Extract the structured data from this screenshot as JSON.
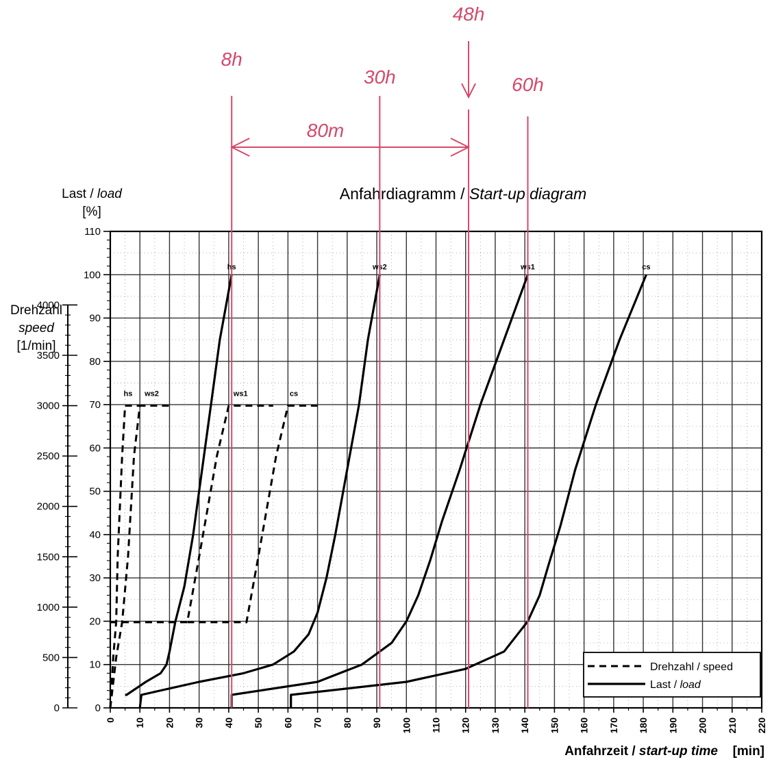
{
  "chart_data": {
    "type": "line",
    "title": "Anfahrdiagramm / Start-up diagram",
    "title_parts": {
      "de": "Anfahrdiagramm /",
      "en": "Start-up diagram"
    },
    "xlabel": "Anfahrzeit / start-up time",
    "xlabel_parts": {
      "de": "Anfahrzeit /",
      "en": "start-up time"
    },
    "xunit": "[min]",
    "ylabel_load": {
      "de": "Last /",
      "en": "load",
      "unit": "[%]"
    },
    "ylabel_speed": {
      "de": "Drehzahl",
      "en": "speed",
      "unit": "[1/min]"
    },
    "xlim": [
      0,
      220
    ],
    "ylim_load": [
      0,
      110
    ],
    "ylim_speed": [
      0,
      4000
    ],
    "x_ticks": [
      "0",
      "10",
      "20",
      "30",
      "40",
      "50",
      "60",
      "70",
      "80",
      "90",
      "100",
      "110",
      "120",
      "130",
      "140",
      "150",
      "160",
      "170",
      "180",
      "190",
      "200",
      "210",
      "220"
    ],
    "load_ticks": [
      "0",
      "10",
      "20",
      "30",
      "40",
      "50",
      "60",
      "70",
      "80",
      "90",
      "100",
      "110"
    ],
    "speed_ticks": [
      "0",
      "500",
      "1000",
      "1500",
      "2000",
      "2500",
      "3000",
      "3500",
      "4000"
    ],
    "grid": true,
    "legend_position": "bottom-right",
    "legend": [
      {
        "label": "Drehzahl / speed",
        "style": "dashed"
      },
      {
        "label_de": "Last /",
        "label_en": "load",
        "style": "solid"
      }
    ],
    "load_series": [
      {
        "name": "hs",
        "points": [
          [
            5,
            3
          ],
          [
            5.5,
            3
          ],
          [
            12,
            6
          ],
          [
            17,
            8
          ],
          [
            19,
            10
          ],
          [
            20,
            13
          ],
          [
            22,
            20
          ],
          [
            25,
            28
          ],
          [
            28,
            40
          ],
          [
            31,
            55
          ],
          [
            34,
            70
          ],
          [
            37,
            85
          ],
          [
            41,
            100
          ]
        ]
      },
      {
        "name": "ws2",
        "points": [
          [
            10,
            0
          ],
          [
            10.5,
            3
          ],
          [
            30,
            6
          ],
          [
            45,
            8
          ],
          [
            55,
            10
          ],
          [
            62,
            13
          ],
          [
            67,
            17
          ],
          [
            70,
            22
          ],
          [
            73,
            30
          ],
          [
            76,
            40
          ],
          [
            80,
            55
          ],
          [
            84,
            70
          ],
          [
            87,
            85
          ],
          [
            91,
            100
          ]
        ]
      },
      {
        "name": "ws1",
        "points": [
          [
            41,
            0
          ],
          [
            41,
            3
          ],
          [
            70,
            6
          ],
          [
            85,
            10
          ],
          [
            95,
            15
          ],
          [
            100,
            20
          ],
          [
            104,
            26
          ],
          [
            108,
            34
          ],
          [
            112,
            43
          ],
          [
            118,
            55
          ],
          [
            125,
            70
          ],
          [
            133,
            85
          ],
          [
            141,
            100
          ]
        ]
      },
      {
        "name": "cs",
        "points": [
          [
            61,
            0
          ],
          [
            61,
            3
          ],
          [
            100,
            6
          ],
          [
            120,
            9
          ],
          [
            133,
            13
          ],
          [
            141,
            20
          ],
          [
            145,
            26
          ],
          [
            148,
            33
          ],
          [
            152,
            42
          ],
          [
            157,
            55
          ],
          [
            164,
            70
          ],
          [
            172,
            85
          ],
          [
            181,
            100
          ]
        ]
      }
    ],
    "speed_series": [
      {
        "name": "hs",
        "points": [
          [
            0,
            0
          ],
          [
            1,
            500
          ],
          [
            2,
            850
          ],
          [
            2.5,
            1500
          ],
          [
            4,
            2500
          ],
          [
            5,
            3000
          ],
          [
            10,
            3000
          ]
        ]
      },
      {
        "name": "ws2",
        "points": [
          [
            0,
            0
          ],
          [
            2,
            500
          ],
          [
            4,
            850
          ],
          [
            6,
            1500
          ],
          [
            8,
            2500
          ],
          [
            10,
            3000
          ],
          [
            21,
            3000
          ]
        ]
      },
      {
        "name": "ws1",
        "points": [
          [
            0,
            850
          ],
          [
            26,
            850
          ],
          [
            30,
            1500
          ],
          [
            36,
            2500
          ],
          [
            40,
            3000
          ],
          [
            55,
            3000
          ]
        ]
      },
      {
        "name": "cs",
        "points": [
          [
            26,
            850
          ],
          [
            46,
            850
          ],
          [
            50,
            1500
          ],
          [
            56,
            2500
          ],
          [
            60,
            3000
          ],
          [
            71,
            3000
          ]
        ]
      }
    ],
    "speed_labels": [
      "hs",
      "ws2",
      "ws1",
      "cs"
    ],
    "load_labels": [
      "hs",
      "ws2",
      "ws1",
      "cs"
    ]
  },
  "annotations": {
    "color": "#d4496a",
    "markers": [
      {
        "label": "8h",
        "x": 41
      },
      {
        "label": "30h",
        "x": 91
      },
      {
        "label": "48h",
        "x": 121
      },
      {
        "label": "60h",
        "x": 141
      }
    ],
    "span_label": "80m",
    "span_from": 41,
    "span_to": 121
  }
}
